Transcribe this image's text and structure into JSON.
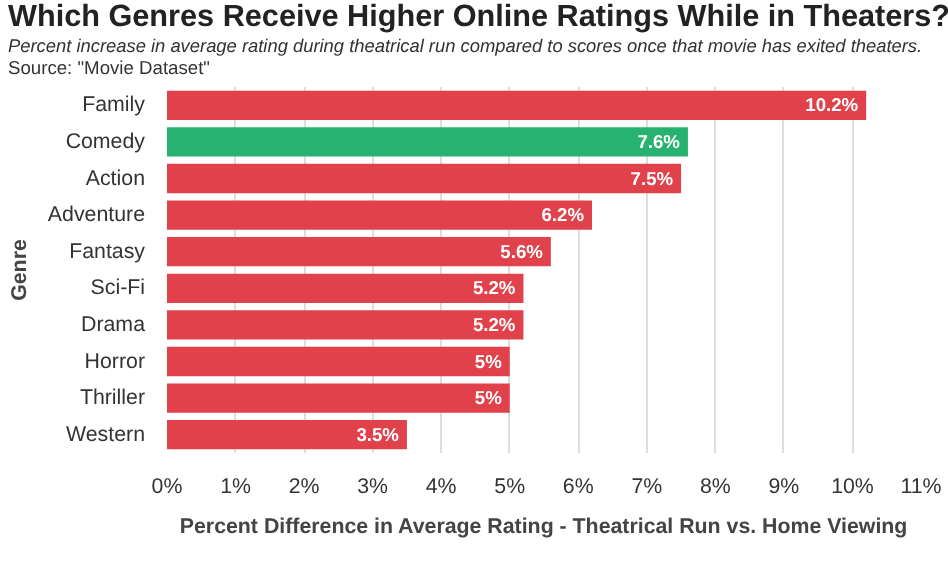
{
  "chart_data": {
    "type": "bar",
    "orientation": "horizontal",
    "title": "Which Genres Receive Higher Online Ratings While in Theaters?",
    "subtitle": "Percent increase in average rating during theatrical run compared to scores once that movie has exited theaters.",
    "annotations": [
      "Source: \"Movie Dataset\""
    ],
    "xlabel": "Percent Difference in Average Rating - Theatrical Run vs. Home Viewing",
    "ylabel": "Genre",
    "categories": [
      "Family",
      "Comedy",
      "Action",
      "Adventure",
      "Fantasy",
      "Sci-Fi",
      "Drama",
      "Horror",
      "Thriller",
      "Western"
    ],
    "values": [
      10.2,
      7.6,
      7.5,
      6.2,
      5.6,
      5.2,
      5.2,
      5,
      5,
      3.5
    ],
    "colors": [
      "#e0414b",
      "#27b36f",
      "#e0414b",
      "#e0414b",
      "#e0414b",
      "#e0414b",
      "#e0414b",
      "#e0414b",
      "#e0414b",
      "#e0414b"
    ],
    "value_labels": [
      "10.2%",
      "7.6%",
      "7.5%",
      "6.2%",
      "5.6%",
      "5.2%",
      "5.2%",
      "5%",
      "5%",
      "3.5%"
    ],
    "xlim": [
      0,
      11
    ],
    "xticks": [
      {
        "value": 0,
        "label": "0%"
      },
      {
        "value": 1,
        "label": "1%"
      },
      {
        "value": 2,
        "label": "2%"
      },
      {
        "value": 3,
        "label": "3%"
      },
      {
        "value": 4,
        "label": "4%"
      },
      {
        "value": 5,
        "label": "5%"
      },
      {
        "value": 6,
        "label": "6%"
      },
      {
        "value": 7,
        "label": "7%"
      },
      {
        "value": 8,
        "label": "8%"
      },
      {
        "value": 9,
        "label": "9%"
      },
      {
        "value": 10,
        "label": "10%"
      },
      {
        "value": 11,
        "label": "11%"
      }
    ],
    "grid": "x"
  }
}
